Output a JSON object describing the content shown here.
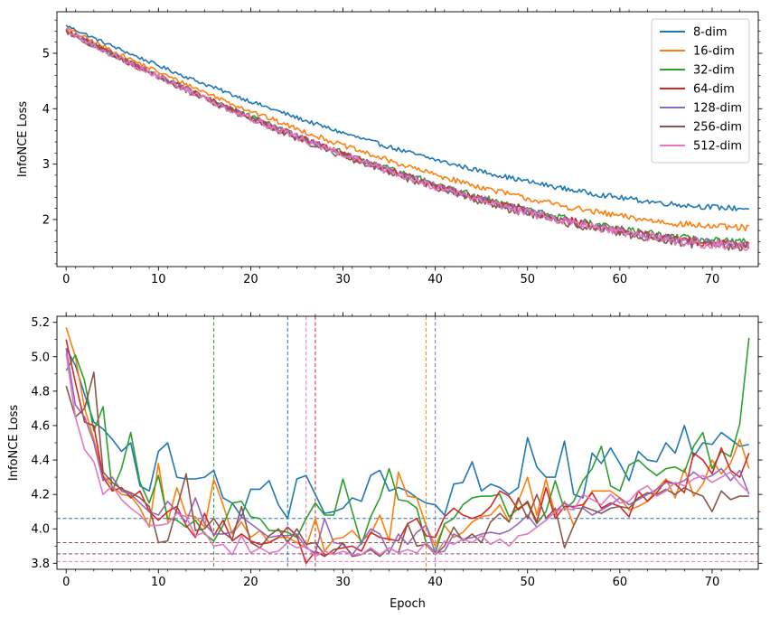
{
  "chart_data": [
    {
      "type": "line",
      "title": "",
      "xlabel": "",
      "ylabel": "InfoNCE Loss",
      "xlim": [
        -1,
        75
      ],
      "ylim": [
        1.15,
        5.75
      ],
      "xticks": [
        0,
        10,
        20,
        30,
        40,
        50,
        60,
        70
      ],
      "yticks": [
        2,
        3,
        4,
        5
      ],
      "grid": false,
      "legend": {
        "placement": "top-right"
      },
      "x_step": 0.2,
      "series": [
        {
          "name": "8-dim",
          "color": "#1f77b4",
          "start": 5.5,
          "end": 2.2,
          "curve": 1.7,
          "noise": 0.05
        },
        {
          "name": "16-dim",
          "color": "#ff7f0e",
          "start": 5.45,
          "end": 1.85,
          "curve": 1.7,
          "noise": 0.06
        },
        {
          "name": "32-dim",
          "color": "#2ca02c",
          "start": 5.4,
          "end": 1.58,
          "curve": 1.65,
          "noise": 0.075
        },
        {
          "name": "64-dim",
          "color": "#d62728",
          "start": 5.4,
          "end": 1.55,
          "curve": 1.65,
          "noise": 0.08
        },
        {
          "name": "128-dim",
          "color": "#9467bd",
          "start": 5.4,
          "end": 1.55,
          "curve": 1.65,
          "noise": 0.08
        },
        {
          "name": "256-dim",
          "color": "#8c564b",
          "start": 5.4,
          "end": 1.5,
          "curve": 1.65,
          "noise": 0.085
        },
        {
          "name": "512-dim",
          "color": "#e377c2",
          "start": 5.4,
          "end": 1.52,
          "curve": 1.65,
          "noise": 0.085
        }
      ]
    },
    {
      "type": "line",
      "title": "",
      "xlabel": "Epoch",
      "ylabel": "InfoNCE Loss",
      "xlim": [
        -1,
        75
      ],
      "ylim": [
        3.765,
        5.235
      ],
      "xticks": [
        0,
        10,
        20,
        30,
        40,
        50,
        60,
        70
      ],
      "yticks": [
        3.8,
        4.0,
        4.2,
        4.4,
        4.6,
        4.8,
        5.0,
        5.2
      ],
      "grid": false,
      "legend": null,
      "x": [
        0,
        1,
        2,
        3,
        4,
        5,
        6,
        7,
        8,
        9,
        10,
        11,
        12,
        13,
        14,
        15,
        16,
        17,
        18,
        19,
        20,
        21,
        22,
        23,
        24,
        25,
        26,
        27,
        28,
        29,
        30,
        31,
        32,
        33,
        34,
        35,
        36,
        37,
        38,
        39,
        40,
        41,
        42,
        43,
        44,
        45,
        46,
        47,
        48,
        49,
        50,
        51,
        52,
        53,
        54,
        55,
        56,
        57,
        58,
        59,
        60,
        61,
        62,
        63,
        64,
        65,
        66,
        67,
        68,
        69,
        70,
        71,
        72,
        73,
        74
      ],
      "series": [
        {
          "name": "8-dim",
          "color": "#1f77b4",
          "values": [
            5.05,
            4.95,
            4.78,
            4.62,
            4.58,
            4.52,
            4.45,
            4.5,
            4.25,
            4.22,
            4.45,
            4.5,
            4.3,
            4.29,
            4.29,
            4.3,
            4.34,
            4.18,
            4.15,
            4.07,
            4.23,
            4.23,
            4.28,
            4.14,
            4.06,
            4.29,
            4.31,
            4.2,
            4.09,
            4.1,
            4.12,
            4.18,
            4.16,
            4.31,
            4.34,
            4.22,
            4.24,
            4.22,
            4.18,
            4.15,
            4.14,
            4.08,
            4.26,
            4.27,
            4.39,
            4.22,
            4.26,
            4.24,
            4.2,
            4.24,
            4.53,
            4.36,
            4.3,
            4.3,
            4.51,
            4.2,
            4.18,
            4.44,
            4.38,
            4.47,
            4.38,
            4.28,
            4.45,
            4.4,
            4.39,
            4.5,
            4.44,
            4.6,
            4.42,
            4.5,
            4.49,
            4.56,
            4.52,
            4.48,
            4.49
          ]
        },
        {
          "name": "16-dim",
          "color": "#ff7f0e",
          "values": [
            5.17,
            5.0,
            4.7,
            4.52,
            4.31,
            4.25,
            4.2,
            4.19,
            4.12,
            4.01,
            4.38,
            4.04,
            4.24,
            4.08,
            4.07,
            4.01,
            4.29,
            4.14,
            3.97,
            4.04,
            3.95,
            3.99,
            3.92,
            3.95,
            3.95,
            3.92,
            3.89,
            4.06,
            3.87,
            3.94,
            3.95,
            3.99,
            3.93,
            3.97,
            4.08,
            3.93,
            4.33,
            4.19,
            4.18,
            4.02,
            3.9,
            4.02,
            3.95,
            3.98,
            4.04,
            4.07,
            4.08,
            4.14,
            4.04,
            4.16,
            4.3,
            4.08,
            4.29,
            4.08,
            4.16,
            4.02,
            4.13,
            4.22,
            4.22,
            4.22,
            4.18,
            4.11,
            4.13,
            4.16,
            4.23,
            4.29,
            4.18,
            4.35,
            4.19,
            4.26,
            4.4,
            4.32,
            4.38,
            4.52,
            4.35
          ]
        },
        {
          "name": "32-dim",
          "color": "#2ca02c",
          "values": [
            4.92,
            5.01,
            4.86,
            4.57,
            4.71,
            4.22,
            4.35,
            4.56,
            4.27,
            4.15,
            4.31,
            4.06,
            4.05,
            4.01,
            4.05,
            3.97,
            3.93,
            4.02,
            4.15,
            4.16,
            4.07,
            4.06,
            3.99,
            3.99,
            3.98,
            3.95,
            4.06,
            4.15,
            4.08,
            4.08,
            4.29,
            4.1,
            3.91,
            4.07,
            4.18,
            4.35,
            4.17,
            4.16,
            4.12,
            3.92,
            3.86,
            4.03,
            4.06,
            4.14,
            4.18,
            4.19,
            4.19,
            4.2,
            4.07,
            4.12,
            4.15,
            4.03,
            4.1,
            4.28,
            4.11,
            4.16,
            4.28,
            4.35,
            4.48,
            4.25,
            4.22,
            4.37,
            4.4,
            4.35,
            4.31,
            4.35,
            4.36,
            4.33,
            4.48,
            4.56,
            4.35,
            4.45,
            4.42,
            4.61,
            5.11
          ]
        },
        {
          "name": "64-dim",
          "color": "#d62728",
          "values": [
            5.1,
            4.85,
            4.62,
            4.6,
            4.3,
            4.22,
            4.24,
            4.18,
            4.22,
            4.1,
            4.05,
            4.1,
            4.13,
            4.02,
            3.95,
            4.09,
            3.96,
            4.05,
            3.93,
            3.97,
            3.93,
            3.91,
            3.92,
            3.95,
            4.01,
            3.96,
            3.8,
            3.87,
            3.84,
            3.88,
            3.89,
            3.9,
            3.87,
            3.98,
            3.95,
            3.94,
            3.93,
            4.03,
            4.06,
            3.96,
            3.95,
            4.07,
            4.12,
            4.08,
            4.06,
            4.08,
            4.13,
            4.22,
            4.19,
            4.11,
            4.16,
            4.04,
            4.24,
            4.06,
            4.13,
            4.13,
            4.14,
            4.21,
            4.12,
            4.15,
            4.13,
            4.07,
            4.22,
            4.16,
            4.21,
            4.28,
            4.26,
            4.21,
            4.44,
            4.4,
            4.32,
            4.47,
            4.34,
            4.3,
            4.44
          ]
        },
        {
          "name": "128-dim",
          "color": "#9467bd",
          "values": [
            5.05,
            4.72,
            4.65,
            4.5,
            4.28,
            4.3,
            4.22,
            4.2,
            4.15,
            4.1,
            4.08,
            4.16,
            4.1,
            4.04,
            4.18,
            4.03,
            3.97,
            3.97,
            3.98,
            4.07,
            4.03,
            3.99,
            3.95,
            3.96,
            3.96,
            3.97,
            3.89,
            3.86,
            4.06,
            3.92,
            3.91,
            3.85,
            3.92,
            4.0,
            3.97,
            3.86,
            3.97,
            3.91,
            3.98,
            4.02,
            3.86,
            3.87,
            3.97,
            3.94,
            3.95,
            3.97,
            3.98,
            3.97,
            3.99,
            4.03,
            4.08,
            4.01,
            4.05,
            4.1,
            4.15,
            4.12,
            4.12,
            4.08,
            4.11,
            4.14,
            4.18,
            4.14,
            4.17,
            4.2,
            4.23,
            4.27,
            4.26,
            4.28,
            4.33,
            4.29,
            4.31,
            4.35,
            4.28,
            4.34,
            4.2
          ]
        },
        {
          "name": "256-dim",
          "color": "#8c564b",
          "values": [
            4.83,
            4.65,
            4.7,
            4.91,
            4.33,
            4.27,
            4.23,
            4.21,
            4.18,
            4.13,
            3.92,
            3.93,
            4.12,
            4.32,
            3.99,
            4.0,
            4.06,
            3.98,
            3.94,
            4.13,
            3.92,
            3.89,
            3.96,
            4.0,
            3.92,
            4.0,
            3.91,
            3.92,
            3.85,
            3.86,
            3.92,
            3.84,
            3.85,
            3.88,
            3.84,
            3.89,
            3.86,
            4.03,
            3.9,
            3.91,
            3.85,
            3.9,
            4.01,
            3.93,
            3.97,
            3.92,
            4.04,
            4.09,
            4.04,
            4.18,
            4.06,
            4.2,
            4.06,
            4.12,
            3.89,
            4.02,
            4.13,
            4.11,
            4.09,
            4.12,
            4.13,
            4.12,
            4.18,
            4.21,
            4.2,
            4.23,
            4.2,
            4.24,
            4.21,
            4.19,
            4.1,
            4.22,
            4.17,
            4.19,
            4.19
          ]
        },
        {
          "name": "512-dim",
          "color": "#e377c2",
          "values": [
            5.02,
            4.65,
            4.46,
            4.39,
            4.2,
            4.25,
            4.17,
            4.12,
            4.08,
            4.02,
            4.02,
            4.03,
            4.09,
            4.07,
            3.96,
            3.98,
            3.9,
            3.91,
            3.85,
            3.96,
            3.86,
            3.89,
            3.86,
            3.87,
            3.92,
            3.89,
            3.9,
            3.84,
            3.87,
            3.85,
            3.87,
            3.85,
            3.85,
            3.89,
            3.85,
            3.89,
            3.86,
            3.88,
            3.86,
            3.92,
            3.85,
            3.93,
            3.91,
            3.94,
            3.92,
            3.96,
            3.91,
            3.94,
            3.9,
            3.96,
            3.97,
            4.01,
            4.05,
            4.1,
            4.12,
            4.11,
            4.2,
            4.17,
            4.14,
            4.2,
            4.15,
            4.16,
            4.22,
            4.25,
            4.19,
            4.22,
            4.27,
            4.25,
            4.29,
            4.31,
            4.27,
            4.3,
            4.33,
            4.26,
            4.21
          ]
        }
      ],
      "hlines": [
        {
          "y": 4.06,
          "color": "#1f77b4"
        },
        {
          "y": 3.92,
          "color": "#2ca02c"
        },
        {
          "y": 3.92,
          "color": "#8c564b"
        },
        {
          "y": 3.855,
          "color": "#d62728"
        },
        {
          "y": 3.855,
          "color": "#9467bd"
        },
        {
          "y": 3.81,
          "color": "#e377c2"
        }
      ],
      "vlines": [
        {
          "x": 16,
          "color": "#2ca02c"
        },
        {
          "x": 24,
          "color": "#1f77b4"
        },
        {
          "x": 26,
          "color": "#e377c2"
        },
        {
          "x": 27,
          "color": "#d62728"
        },
        {
          "x": 39,
          "color": "#ff7f0e"
        },
        {
          "x": 40,
          "color": "#9467bd"
        }
      ]
    }
  ]
}
